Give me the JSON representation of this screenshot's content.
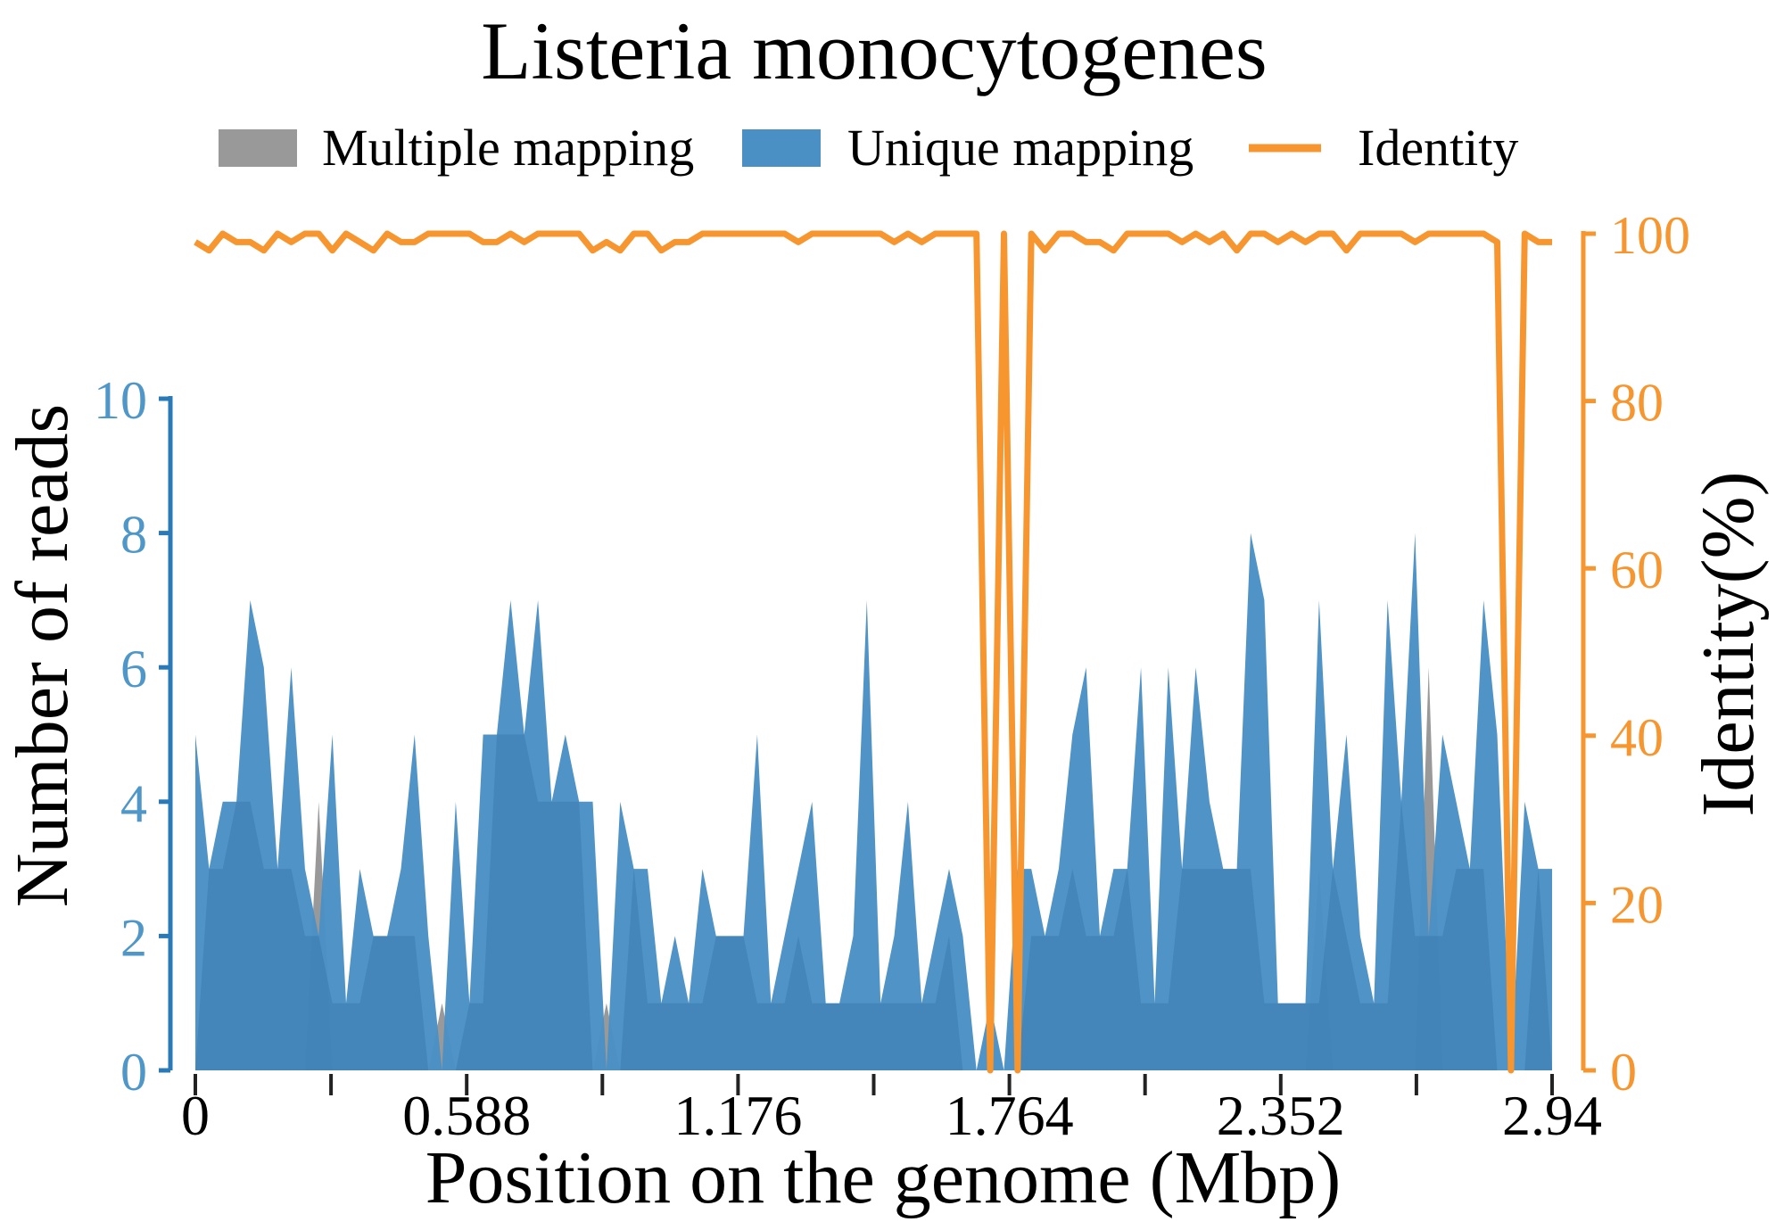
{
  "chart_data": {
    "type": "area",
    "title": "Listeria monocytogenes",
    "xlabel": "Position on the genome (Mbp)",
    "ylabel": "Number of reads",
    "y2label": "Identity(%)",
    "xlim": [
      0,
      2.94
    ],
    "ylim": [
      0,
      10
    ],
    "y2lim": [
      0,
      100
    ],
    "xticks": [
      0,
      0.294,
      0.588,
      0.882,
      1.176,
      1.47,
      1.764,
      2.058,
      2.352,
      2.646,
      2.94
    ],
    "xtick_labels": [
      "0",
      "",
      "0.588",
      "",
      "1.176",
      "",
      "1.764",
      "",
      "2.352",
      "",
      "2.94"
    ],
    "yticks": [
      "0",
      "2",
      "4",
      "6",
      "8",
      "10"
    ],
    "y2ticks": [
      "0",
      "20",
      "40",
      "60",
      "80",
      "100"
    ],
    "legend_position": "top",
    "grid": false,
    "colors": {
      "multiple": "#999999",
      "unique": "#4a90c4",
      "identity": "#f7952f",
      "left_axis": "#2a7ab8",
      "left_tick_text": "#4f97c8"
    },
    "series": [
      {
        "name": "Multiple mapping",
        "kind": "area",
        "values": [
          0,
          0,
          0,
          0,
          0,
          0,
          0,
          0,
          0,
          4,
          0,
          0,
          0,
          0,
          0,
          0,
          0,
          0,
          1,
          0,
          0,
          0,
          0,
          0,
          0,
          0,
          0,
          0,
          0,
          0,
          1,
          0,
          0,
          0,
          0,
          0,
          0,
          0,
          0,
          0,
          0,
          0,
          0,
          0,
          0,
          0,
          0,
          0,
          0,
          0,
          0,
          0,
          0,
          0,
          0,
          0,
          0,
          0,
          0,
          0,
          0,
          0,
          0,
          0,
          0,
          0,
          0,
          0,
          0,
          0,
          0,
          0,
          0,
          0,
          0,
          0,
          0,
          0,
          0,
          0,
          0,
          0,
          3,
          0,
          0,
          0,
          0,
          0,
          0,
          0,
          6,
          0,
          0,
          0,
          0,
          0,
          0,
          0,
          0,
          0
        ]
      },
      {
        "name": "Unique mapping",
        "kind": "area",
        "values": [
          5,
          3,
          4,
          4,
          7,
          6,
          3,
          6,
          3,
          2,
          5,
          1,
          3,
          2,
          2,
          3,
          5,
          2,
          0,
          4,
          1,
          5,
          5,
          7,
          5,
          7,
          4,
          5,
          4,
          4,
          0,
          4,
          3,
          3,
          1,
          2,
          1,
          3,
          2,
          2,
          2,
          5,
          1,
          2,
          3,
          4,
          1,
          1,
          2,
          7,
          1,
          2,
          4,
          1,
          2,
          3,
          2,
          0,
          1,
          0,
          3,
          3,
          2,
          3,
          5,
          6,
          2,
          3,
          3,
          6,
          1,
          6,
          3,
          6,
          4,
          3,
          3,
          8,
          7,
          1,
          1,
          1,
          7,
          3,
          5,
          2,
          1,
          7,
          4,
          8,
          2,
          5,
          4,
          3,
          7,
          5,
          0,
          4,
          3,
          3
        ]
      },
      {
        "name": "Identity",
        "kind": "line",
        "axis": "right",
        "values": [
          99,
          98,
          100,
          99,
          99,
          98,
          100,
          99,
          100,
          100,
          98,
          100,
          99,
          98,
          100,
          99,
          99,
          100,
          100,
          100,
          100,
          99,
          99,
          100,
          99,
          100,
          100,
          100,
          100,
          98,
          99,
          98,
          100,
          100,
          98,
          99,
          99,
          100,
          100,
          100,
          100,
          100,
          100,
          100,
          99,
          100,
          100,
          100,
          100,
          100,
          100,
          99,
          100,
          99,
          100,
          100,
          100,
          100,
          0,
          100,
          0,
          100,
          98,
          100,
          100,
          99,
          99,
          98,
          100,
          100,
          100,
          100,
          99,
          100,
          99,
          100,
          98,
          100,
          100,
          99,
          100,
          99,
          100,
          100,
          98,
          100,
          100,
          100,
          100,
          99,
          100,
          100,
          100,
          100,
          100,
          99,
          0,
          100,
          99,
          99
        ]
      }
    ]
  }
}
